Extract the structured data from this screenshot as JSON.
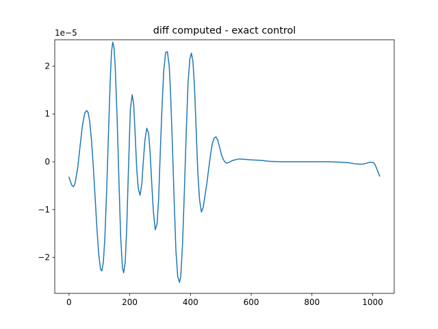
{
  "chart_data": {
    "type": "line",
    "title": "diff computed - exact control",
    "xlabel": "",
    "ylabel": "",
    "y_offset_label": "1e−5",
    "xlim": [
      -47,
      1071
    ],
    "ylim": [
      -2.75,
      2.55
    ],
    "x_ticks": [
      0,
      200,
      400,
      600,
      800,
      1000
    ],
    "x_tick_labels": [
      "0",
      "200",
      "400",
      "600",
      "800",
      "1000"
    ],
    "y_ticks": [
      -2,
      -1,
      0,
      1,
      2
    ],
    "y_tick_labels": [
      "−2",
      "−1",
      "0",
      "1",
      "2"
    ],
    "grid": false,
    "series": [
      {
        "color": "#1f77b4",
        "x": [
          0,
          5,
          10,
          15,
          20,
          28,
          36,
          44,
          52,
          58,
          63,
          68,
          74,
          80,
          86,
          92,
          98,
          104,
          108,
          113,
          118,
          124,
          130,
          136,
          140,
          144,
          148,
          152,
          158,
          164,
          170,
          176,
          180,
          185,
          190,
          196,
          202,
          208,
          213,
          218,
          223,
          228,
          234,
          240,
          244,
          250,
          256,
          262,
          267,
          272,
          278,
          284,
          290,
          295,
          300,
          306,
          312,
          318,
          324,
          330,
          334,
          340,
          346,
          352,
          358,
          364,
          368,
          374,
          380,
          386,
          392,
          398,
          403,
          408,
          413,
          418,
          424,
          430,
          436,
          442,
          448,
          454,
          460,
          466,
          472,
          478,
          484,
          490,
          496,
          502,
          508,
          514,
          520,
          528,
          536,
          546,
          560,
          580,
          600,
          630,
          660,
          700,
          750,
          800,
          850,
          880,
          900,
          920,
          940,
          955,
          965,
          975,
          985,
          993,
          1000,
          1006,
          1012,
          1017,
          1023
        ],
        "values": [
          -0.32,
          -0.42,
          -0.5,
          -0.52,
          -0.45,
          -0.15,
          0.3,
          0.75,
          1.02,
          1.07,
          1.03,
          0.85,
          0.45,
          -0.1,
          -0.75,
          -1.4,
          -1.95,
          -2.25,
          -2.28,
          -2.1,
          -1.6,
          -0.6,
          0.6,
          1.75,
          2.3,
          2.5,
          2.4,
          2.0,
          1.0,
          -0.3,
          -1.55,
          -2.22,
          -2.32,
          -2.1,
          -1.4,
          -0.1,
          1.1,
          1.4,
          1.2,
          0.55,
          -0.15,
          -0.55,
          -0.7,
          -0.45,
          -0.05,
          0.45,
          0.7,
          0.6,
          0.2,
          -0.4,
          -1.05,
          -1.42,
          -1.3,
          -0.8,
          0.1,
          1.1,
          1.9,
          2.28,
          2.3,
          2.0,
          1.5,
          0.45,
          -0.75,
          -1.85,
          -2.4,
          -2.52,
          -2.4,
          -1.7,
          -0.6,
          0.6,
          1.65,
          2.15,
          2.27,
          2.1,
          1.6,
          0.8,
          -0.2,
          -0.8,
          -1.05,
          -0.95,
          -0.7,
          -0.45,
          -0.15,
          0.15,
          0.38,
          0.5,
          0.52,
          0.45,
          0.3,
          0.15,
          0.05,
          -0.01,
          -0.03,
          -0.01,
          0.02,
          0.04,
          0.06,
          0.05,
          0.04,
          0.03,
          0.01,
          0.0,
          0.0,
          0.0,
          0.0,
          -0.005,
          -0.01,
          -0.02,
          -0.04,
          -0.05,
          -0.05,
          -0.04,
          -0.02,
          -0.01,
          -0.01,
          -0.04,
          -0.12,
          -0.2,
          -0.3
        ]
      }
    ]
  }
}
